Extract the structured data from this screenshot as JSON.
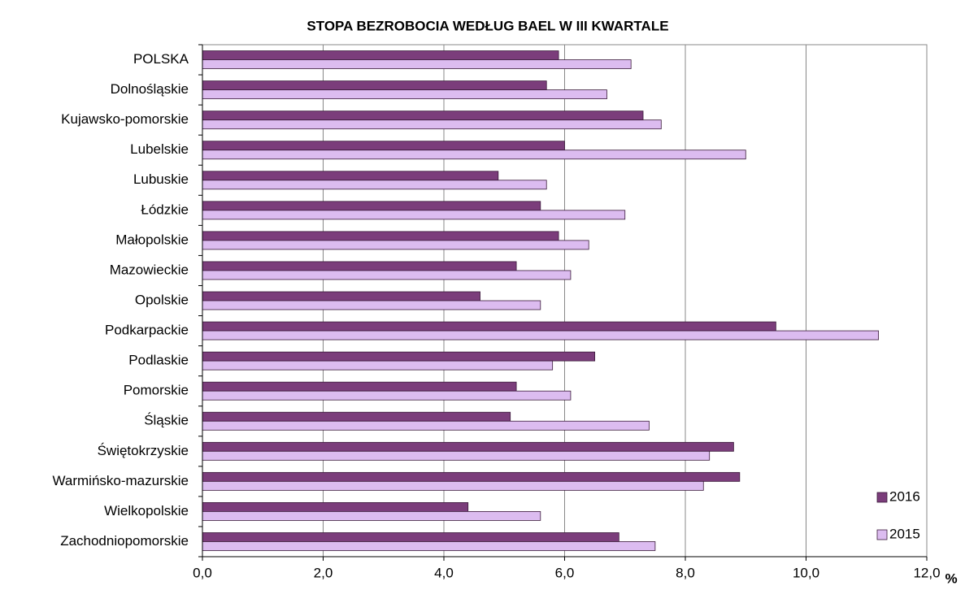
{
  "chart_data": {
    "type": "hbar",
    "title": "STOPA BEZROBOCIA  WEDŁUG  BAEL  W III KWARTALE",
    "x_unit": "%",
    "categories": [
      "POLSKA",
      "Dolnośląskie",
      "Kujawsko-pomorskie",
      "Lubelskie",
      "Lubuskie",
      "Łódzkie",
      "Małopolskie",
      "Mazowieckie",
      "Opolskie",
      "Podkarpackie",
      "Podlaskie",
      "Pomorskie",
      "Śląskie",
      "Świętokrzyskie",
      "Warmińsko-mazurskie",
      "Wielkopolskie",
      "Zachodniopomorskie"
    ],
    "series": [
      {
        "name": "2016",
        "color": "#7b3d7b",
        "values": [
          5.9,
          5.7,
          7.3,
          6.0,
          4.9,
          5.6,
          5.9,
          5.2,
          4.6,
          9.5,
          6.5,
          5.2,
          5.1,
          8.8,
          8.9,
          4.4,
          6.9
        ]
      },
      {
        "name": "2015",
        "color": "#dcbcf0",
        "values": [
          7.1,
          6.7,
          7.6,
          9.0,
          5.7,
          7.0,
          6.4,
          6.1,
          5.6,
          11.2,
          5.8,
          6.1,
          7.4,
          8.4,
          8.3,
          5.6,
          7.5
        ]
      }
    ],
    "xlim": [
      0,
      12
    ],
    "xticks": [
      {
        "value": 0,
        "label": "0,0"
      },
      {
        "value": 2,
        "label": "2,0"
      },
      {
        "value": 4,
        "label": "4,0"
      },
      {
        "value": 6,
        "label": "6,0"
      },
      {
        "value": 8,
        "label": "8,0"
      },
      {
        "value": 10,
        "label": "10,0"
      },
      {
        "value": 12,
        "label": "12,0"
      }
    ],
    "grid": true,
    "legend": "lower right"
  }
}
